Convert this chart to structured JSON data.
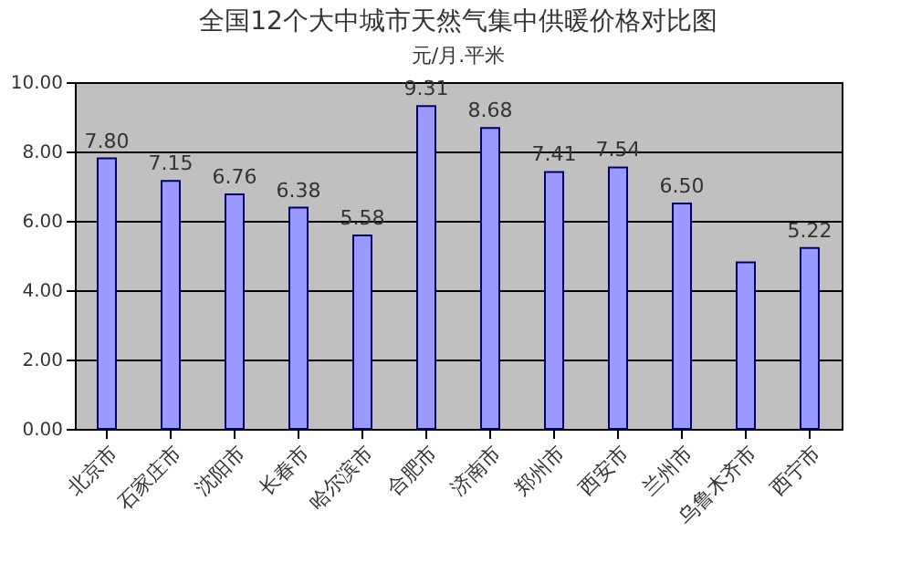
{
  "chart_data": {
    "type": "bar",
    "title": "全国12个大中城市天然气集中供暖价格对比图",
    "ylabel": "元/月.平米",
    "categories": [
      "北京市",
      "石家庄市",
      "沈阳市",
      "长春市",
      "哈尔滨市",
      "合肥市",
      "济南市",
      "郑州市",
      "西安市",
      "兰州市",
      "乌鲁木齐市",
      "西宁市"
    ],
    "values": [
      7.8,
      7.15,
      6.76,
      6.38,
      5.58,
      9.31,
      8.68,
      7.41,
      7.54,
      6.5,
      4.8,
      5.22
    ],
    "value_labels": [
      "7.80",
      "7.15",
      "6.76",
      "6.38",
      "5.58",
      "9.31",
      "8.68",
      "7.41",
      "7.54",
      "6.50",
      null,
      "5.22"
    ],
    "color": "#9999ff",
    "ylim": [
      0,
      10
    ],
    "yticks": [
      {
        "value": 0,
        "label": "0.00"
      },
      {
        "value": 2,
        "label": "2.00"
      },
      {
        "value": 4,
        "label": "4.00"
      },
      {
        "value": 6,
        "label": "6.00"
      },
      {
        "value": 8,
        "label": "8.00"
      },
      {
        "value": 10,
        "label": "10.00"
      }
    ],
    "grid": "y"
  }
}
